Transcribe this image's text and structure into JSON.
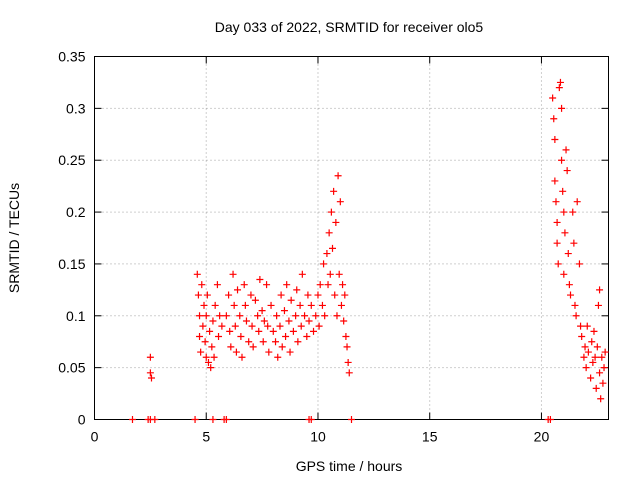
{
  "chart_data": {
    "type": "scatter",
    "title": "Day 033 of 2022, SRMTID for receiver olo5",
    "xlabel": "GPS time / hours",
    "ylabel": "SRMTID / TECUs",
    "xlim": [
      0,
      23
    ],
    "ylim": [
      0,
      0.35
    ],
    "xticks": [
      0,
      5,
      10,
      15,
      20
    ],
    "yticks": [
      0,
      0.05,
      0.1,
      0.15,
      0.2,
      0.25,
      0.3,
      0.35
    ],
    "grid": true,
    "marker": "+",
    "color": "#ff0000",
    "series": [
      {
        "name": "SRMTID",
        "points": [
          [
            1.7,
            0
          ],
          [
            2.4,
            0
          ],
          [
            2.5,
            0
          ],
          [
            2.7,
            0
          ],
          [
            4.5,
            0
          ],
          [
            5.3,
            0
          ],
          [
            5.8,
            0
          ],
          [
            5.9,
            0
          ],
          [
            9.6,
            0
          ],
          [
            9.7,
            0
          ],
          [
            11.5,
            0
          ],
          [
            20.3,
            0
          ],
          [
            20.4,
            0
          ],
          [
            2.5,
            0.06
          ],
          [
            2.5,
            0.045
          ],
          [
            2.55,
            0.04
          ],
          [
            4.6,
            0.14
          ],
          [
            4.65,
            0.12
          ],
          [
            4.7,
            0.1
          ],
          [
            4.7,
            0.08
          ],
          [
            4.75,
            0.065
          ],
          [
            4.8,
            0.13
          ],
          [
            4.85,
            0.09
          ],
          [
            4.9,
            0.11
          ],
          [
            4.95,
            0.075
          ],
          [
            5.0,
            0.1
          ],
          [
            5.0,
            0.06
          ],
          [
            5.05,
            0.12
          ],
          [
            5.1,
            0.055
          ],
          [
            5.15,
            0.085
          ],
          [
            5.2,
            0.05
          ],
          [
            5.25,
            0.07
          ],
          [
            5.3,
            0.095
          ],
          [
            5.35,
            0.06
          ],
          [
            5.4,
            0.11
          ],
          [
            5.5,
            0.13
          ],
          [
            5.55,
            0.08
          ],
          [
            5.6,
            0.1
          ],
          [
            5.7,
            0.09
          ],
          [
            5.9,
            0.1
          ],
          [
            6.0,
            0.12
          ],
          [
            6.05,
            0.085
          ],
          [
            6.1,
            0.07
          ],
          [
            6.2,
            0.14
          ],
          [
            6.25,
            0.11
          ],
          [
            6.3,
            0.09
          ],
          [
            6.35,
            0.065
          ],
          [
            6.4,
            0.125
          ],
          [
            6.5,
            0.1
          ],
          [
            6.55,
            0.08
          ],
          [
            6.6,
            0.06
          ],
          [
            6.7,
            0.13
          ],
          [
            6.75,
            0.11
          ],
          [
            6.8,
            0.095
          ],
          [
            6.9,
            0.075
          ],
          [
            7.0,
            0.12
          ],
          [
            7.05,
            0.09
          ],
          [
            7.1,
            0.07
          ],
          [
            7.2,
            0.115
          ],
          [
            7.3,
            0.1
          ],
          [
            7.35,
            0.085
          ],
          [
            7.4,
            0.135
          ],
          [
            7.5,
            0.105
          ],
          [
            7.55,
            0.075
          ],
          [
            7.6,
            0.095
          ],
          [
            7.7,
            0.13
          ],
          [
            7.75,
            0.09
          ],
          [
            7.8,
            0.065
          ],
          [
            7.9,
            0.11
          ],
          [
            8.0,
            0.085
          ],
          [
            8.1,
            0.075
          ],
          [
            8.15,
            0.1
          ],
          [
            8.2,
            0.06
          ],
          [
            8.3,
            0.09
          ],
          [
            8.35,
            0.12
          ],
          [
            8.4,
            0.07
          ],
          [
            8.5,
            0.105
          ],
          [
            8.55,
            0.08
          ],
          [
            8.6,
            0.13
          ],
          [
            8.7,
            0.095
          ],
          [
            8.75,
            0.065
          ],
          [
            8.8,
            0.115
          ],
          [
            8.9,
            0.085
          ],
          [
            9.0,
            0.1
          ],
          [
            9.05,
            0.125
          ],
          [
            9.1,
            0.075
          ],
          [
            9.2,
            0.11
          ],
          [
            9.25,
            0.09
          ],
          [
            9.3,
            0.14
          ],
          [
            9.4,
            0.1
          ],
          [
            9.5,
            0.08
          ],
          [
            9.55,
            0.12
          ],
          [
            9.6,
            0.095
          ],
          [
            9.7,
            0.11
          ],
          [
            9.8,
            0.085
          ],
          [
            9.9,
            0.1
          ],
          [
            10.0,
            0.12
          ],
          [
            10.05,
            0.09
          ],
          [
            10.1,
            0.13
          ],
          [
            10.2,
            0.11
          ],
          [
            10.25,
            0.15
          ],
          [
            10.3,
            0.1
          ],
          [
            10.4,
            0.16
          ],
          [
            10.45,
            0.13
          ],
          [
            10.5,
            0.18
          ],
          [
            10.55,
            0.14
          ],
          [
            10.6,
            0.2
          ],
          [
            10.65,
            0.165
          ],
          [
            10.7,
            0.22
          ],
          [
            10.75,
            0.12
          ],
          [
            10.8,
            0.19
          ],
          [
            10.85,
            0.1
          ],
          [
            10.9,
            0.235
          ],
          [
            10.95,
            0.14
          ],
          [
            11.0,
            0.21
          ],
          [
            11.05,
            0.11
          ],
          [
            11.1,
            0.13
          ],
          [
            11.15,
            0.095
          ],
          [
            11.2,
            0.12
          ],
          [
            11.25,
            0.08
          ],
          [
            11.3,
            0.07
          ],
          [
            11.35,
            0.055
          ],
          [
            11.4,
            0.045
          ],
          [
            20.5,
            0.31
          ],
          [
            20.55,
            0.29
          ],
          [
            20.6,
            0.27
          ],
          [
            20.6,
            0.23
          ],
          [
            20.65,
            0.21
          ],
          [
            20.7,
            0.19
          ],
          [
            20.7,
            0.17
          ],
          [
            20.75,
            0.15
          ],
          [
            20.8,
            0.32
          ],
          [
            20.85,
            0.325
          ],
          [
            20.9,
            0.3
          ],
          [
            20.9,
            0.25
          ],
          [
            20.95,
            0.22
          ],
          [
            21.0,
            0.2
          ],
          [
            21.0,
            0.14
          ],
          [
            21.05,
            0.18
          ],
          [
            21.1,
            0.26
          ],
          [
            21.15,
            0.24
          ],
          [
            21.2,
            0.16
          ],
          [
            21.25,
            0.13
          ],
          [
            21.3,
            0.12
          ],
          [
            21.4,
            0.2
          ],
          [
            21.45,
            0.17
          ],
          [
            21.5,
            0.11
          ],
          [
            21.55,
            0.1
          ],
          [
            21.6,
            0.21
          ],
          [
            21.7,
            0.15
          ],
          [
            21.75,
            0.09
          ],
          [
            21.8,
            0.08
          ],
          [
            21.9,
            0.06
          ],
          [
            21.95,
            0.07
          ],
          [
            22.0,
            0.05
          ],
          [
            22.05,
            0.09
          ],
          [
            22.1,
            0.065
          ],
          [
            22.2,
            0.04
          ],
          [
            22.25,
            0.075
          ],
          [
            22.3,
            0.055
          ],
          [
            22.35,
            0.085
          ],
          [
            22.4,
            0.06
          ],
          [
            22.45,
            0.03
          ],
          [
            22.5,
            0.07
          ],
          [
            22.55,
            0.11
          ],
          [
            22.6,
            0.125
          ],
          [
            22.6,
            0.045
          ],
          [
            22.65,
            0.02
          ],
          [
            22.7,
            0.06
          ],
          [
            22.75,
            0.035
          ],
          [
            22.8,
            0.05
          ],
          [
            22.85,
            0.065
          ]
        ]
      }
    ]
  }
}
